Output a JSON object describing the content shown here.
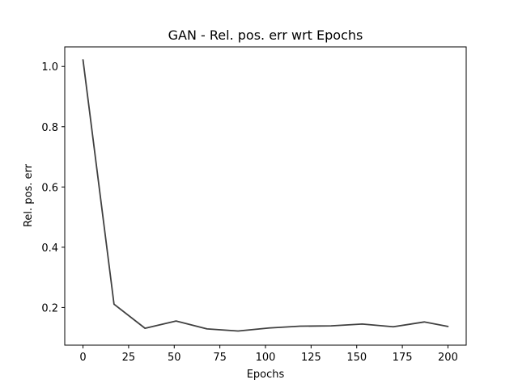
{
  "chart_data": {
    "type": "line",
    "title": "GAN - Rel. pos. err wrt Epochs",
    "xlabel": "Epochs",
    "ylabel": "Rel. pos. err",
    "xlim": [
      -10,
      210
    ],
    "ylim": [
      0.075,
      1.065
    ],
    "xticks": [
      0,
      25,
      50,
      75,
      100,
      125,
      150,
      175,
      200
    ],
    "xtick_labels": [
      "0",
      "25",
      "50",
      "75",
      "100",
      "125",
      "150",
      "175",
      "200"
    ],
    "yticks": [
      0.2,
      0.4,
      0.6,
      0.8,
      1.0
    ],
    "ytick_labels": [
      "0.2",
      "0.4",
      "0.6",
      "0.8",
      "1.0"
    ],
    "grid": false,
    "legend": "none",
    "series": [
      {
        "color": "#404040",
        "x": [
          0,
          17,
          34,
          51,
          68,
          85,
          102,
          119,
          136,
          153,
          170,
          187,
          200
        ],
        "y": [
          1.022,
          0.211,
          0.131,
          0.155,
          0.129,
          0.122,
          0.132,
          0.138,
          0.139,
          0.145,
          0.136,
          0.152,
          0.137
        ]
      }
    ]
  }
}
